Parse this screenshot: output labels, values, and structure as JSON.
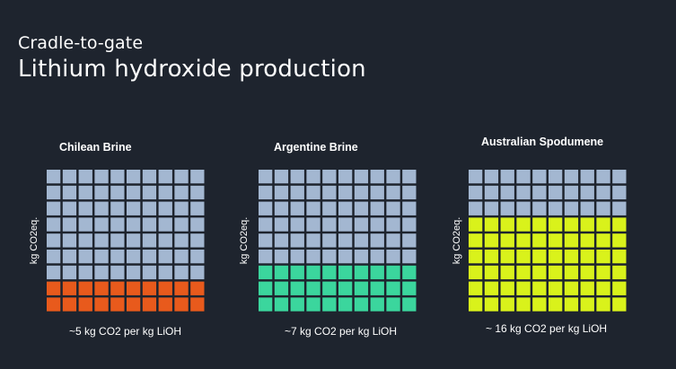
{
  "header": {
    "subtitle": "Cradle-to-gate",
    "title": "Lithium hydroxide production"
  },
  "colors": {
    "background": "#1e242e",
    "empty_cell": "#a3b7d1",
    "chilean": "#e85a1c",
    "argentine": "#3bd69d",
    "australian": "#d9f21b"
  },
  "chart_data": [
    {
      "type": "waffle",
      "title": "Chilean Brine",
      "ylabel": "kg CO2eq.",
      "caption": "~5 kg CO2 per kg LiOH",
      "value": 5,
      "unit": "kg CO2 per kg LiOH",
      "grid": {
        "rows": 9,
        "cols": 10
      },
      "filled_rows": 2,
      "fill_color": "#e85a1c"
    },
    {
      "type": "waffle",
      "title": "Argentine Brine",
      "ylabel": "kg CO2eq.",
      "caption": "~7 kg CO2 per kg LiOH",
      "value": 7,
      "unit": "kg CO2 per kg LiOH",
      "grid": {
        "rows": 9,
        "cols": 10
      },
      "filled_rows": 3,
      "fill_color": "#3bd69d"
    },
    {
      "type": "waffle",
      "title": "Australian Spodumene",
      "ylabel": "kg CO2eq.",
      "caption": "~ 16 kg CO2 per kg LiOH",
      "value": 16,
      "unit": "kg CO2 per kg LiOH",
      "grid": {
        "rows": 9,
        "cols": 10
      },
      "filled_rows": 6,
      "fill_color": "#d9f21b"
    }
  ]
}
